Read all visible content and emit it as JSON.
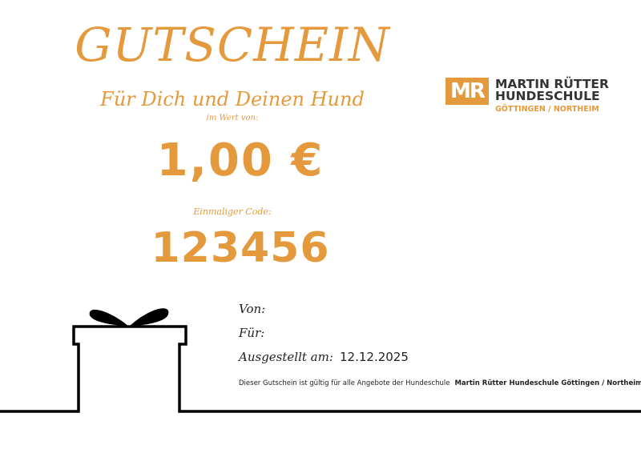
{
  "voucher": {
    "title": "GUTSCHEIN",
    "subtitle": "Für Dich und Deinen Hund",
    "value_label": "im Wert von:",
    "amount": "1,00 €",
    "code_label": "Einmaliger Code:",
    "code": "123456"
  },
  "fields": {
    "from_label": "Von:",
    "to_label": "Für:",
    "issued_label": "Ausgestellt am:",
    "issued_value": "12.12.2025"
  },
  "note": {
    "text": "Dieser Gutschein ist gültig für alle Angebote der Hundeschule",
    "school": "Martin Rütter Hundeschule Göttingen / Northeim"
  },
  "logo": {
    "mark": "MR",
    "line1": "MARTIN RÜTTER",
    "line2": "HUNDESCHULE",
    "line3": "GÖTTINGEN / NORTHEIM"
  },
  "colors": {
    "accent": "#e49a3c",
    "text": "#222222"
  },
  "icons": {
    "gift": "gift-icon"
  }
}
